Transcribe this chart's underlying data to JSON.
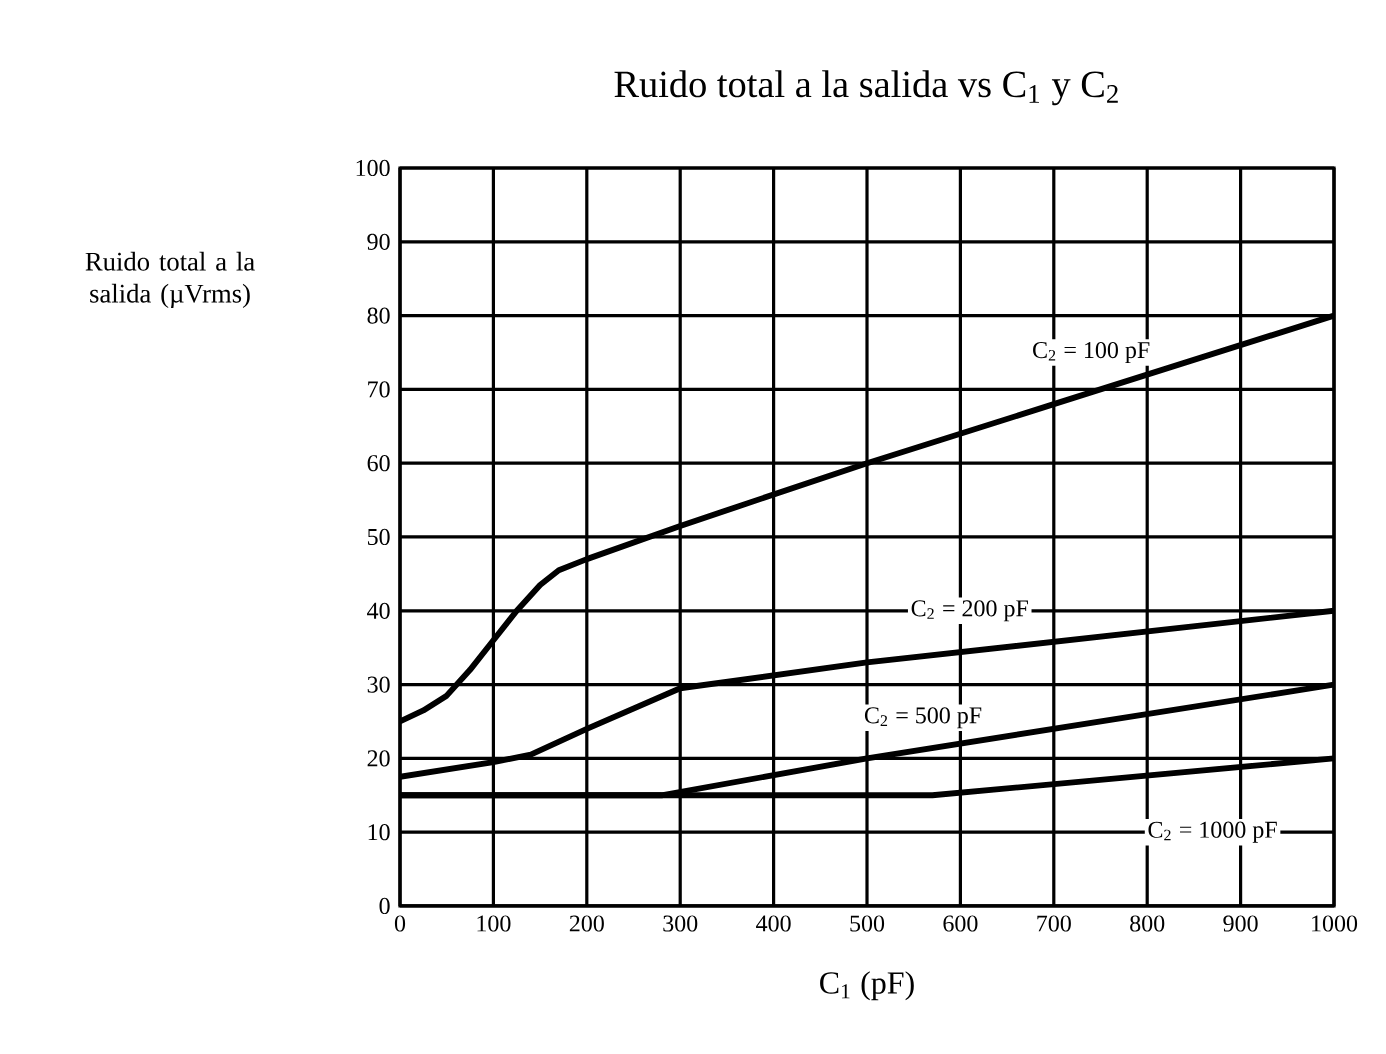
{
  "chart_data": {
    "type": "line",
    "title": "Ruido total a la salida vs C$_{1}$ y C$_{2}$",
    "xlabel": "C$_{1}$ (pF)",
    "ylabel": "Ruido total a la salida (µVrms)",
    "x": [
      0,
      25,
      50,
      75,
      100,
      125,
      150,
      170,
      200,
      300,
      500,
      700,
      1000
    ],
    "series": [
      {
        "name": "C$_{2}$ = 100 pF",
        "color": "#000000",
        "values": [
          25,
          26.5,
          28.5,
          32,
          36,
          40,
          43.5,
          45.5,
          47,
          51.5,
          60,
          68,
          80
        ]
      },
      {
        "name": "C$_{2}$ = 200 pF",
        "color": "#000000",
        "x": [
          0,
          100,
          140,
          200,
          300,
          500,
          1000
        ],
        "values": [
          17.5,
          19.5,
          20.5,
          24,
          29.5,
          33,
          40
        ]
      },
      {
        "name": "C$_{2}$ = 500 pF",
        "color": "#000000",
        "x": [
          0,
          280,
          500,
          1000
        ],
        "values": [
          15,
          15,
          20,
          30
        ]
      },
      {
        "name": "C$_{2}$ = 1000 pF",
        "color": "#000000",
        "x": [
          0,
          570,
          1000
        ],
        "values": [
          15,
          15,
          20
        ]
      }
    ],
    "xlim": [
      0,
      1000
    ],
    "ylim": [
      0,
      100
    ],
    "xticks": [
      0,
      100,
      200,
      300,
      400,
      500,
      600,
      700,
      800,
      900,
      1000
    ],
    "yticks": [
      0,
      10,
      20,
      30,
      40,
      50,
      60,
      70,
      80,
      90,
      100
    ],
    "grid": true,
    "legend": false,
    "line_style": "solid"
  }
}
